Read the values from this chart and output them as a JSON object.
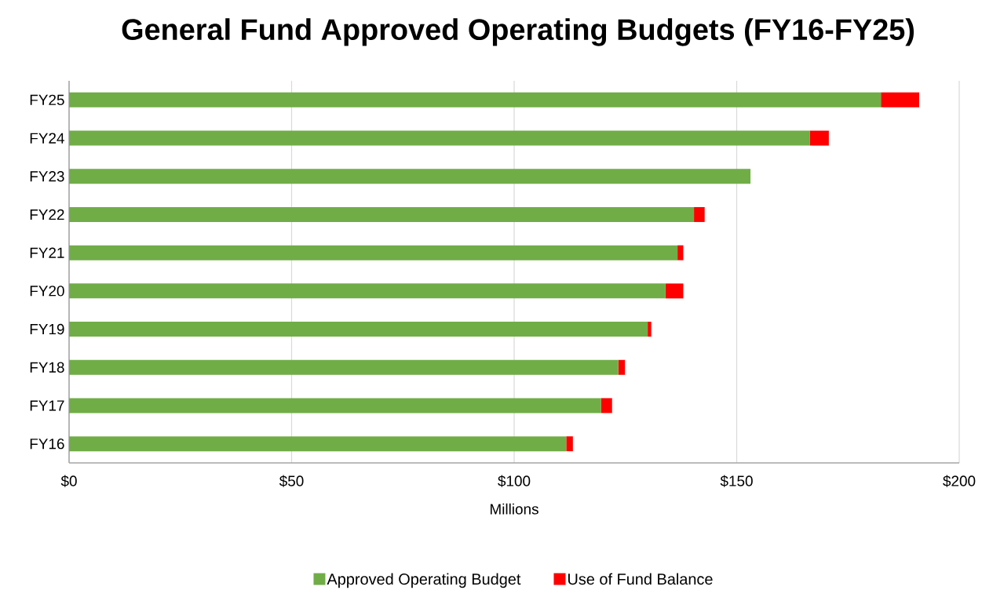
{
  "chart_data": {
    "type": "bar",
    "orientation": "horizontal",
    "stacked": true,
    "title": "General Fund Approved Operating Budgets (FY16-FY25)",
    "xlabel": "Millions",
    "categories": [
      "FY25",
      "FY24",
      "FY23",
      "FY22",
      "FY21",
      "FY20",
      "FY19",
      "FY18",
      "FY17",
      "FY16"
    ],
    "series": [
      {
        "name": "Approved Operating Budget",
        "color": "#70ad47",
        "values": [
          182.4,
          166.4,
          153.1,
          140.4,
          136.7,
          134.0,
          130.0,
          123.4,
          119.5,
          111.7
        ]
      },
      {
        "name": "Use of Fund Balance",
        "color": "#ff0000",
        "values": [
          8.6,
          4.3,
          null,
          2.4,
          1.3,
          4.0,
          0.8,
          1.5,
          2.5,
          1.5
        ]
      }
    ],
    "xlim": [
      0,
      200
    ],
    "xticks": [
      {
        "value": 0,
        "label": "$0"
      },
      {
        "value": 50,
        "label": "$50"
      },
      {
        "value": 100,
        "label": "$100"
      },
      {
        "value": 150,
        "label": "$150"
      },
      {
        "value": 200,
        "label": "$200"
      }
    ],
    "grid": "x",
    "legend": "bottom"
  }
}
